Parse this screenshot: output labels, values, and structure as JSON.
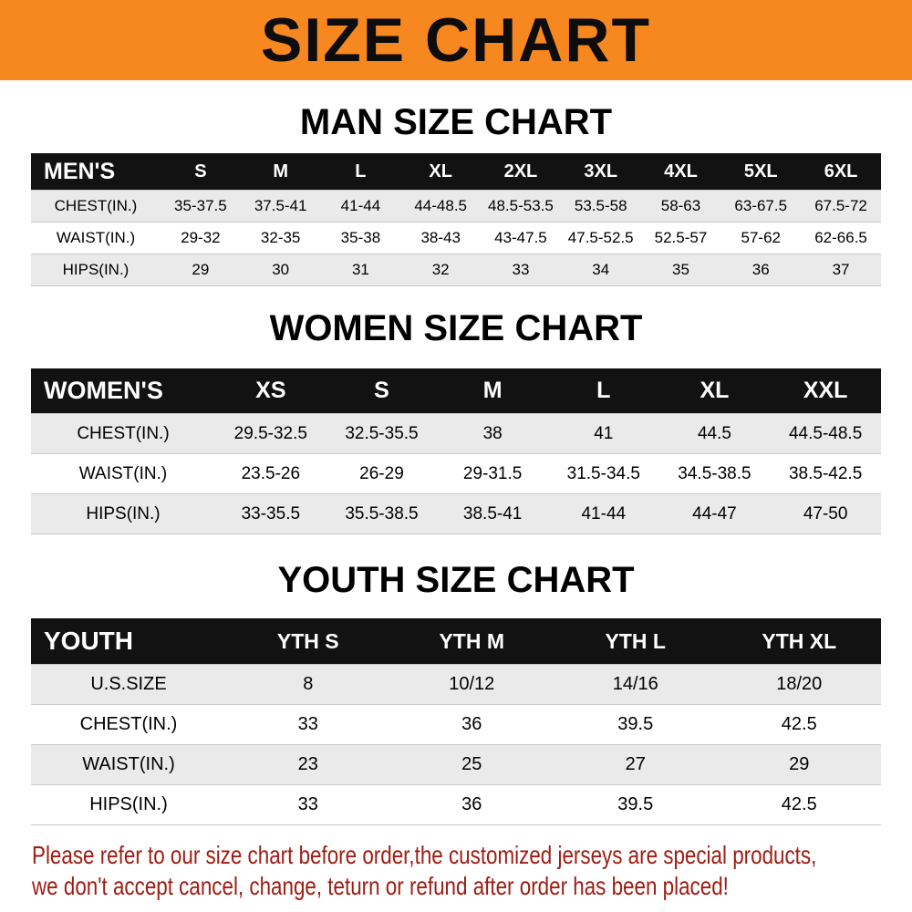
{
  "banner": {
    "title": "SIZE CHART"
  },
  "colors": {
    "banner_background": "#f6881f",
    "header_bar": "#121212",
    "row_stripe": "#eaeaea",
    "notice_text": "#9e1c12"
  },
  "sections": [
    {
      "heading": "MAN SIZE CHART",
      "table": {
        "header_label": "MEN'S",
        "columns": [
          "S",
          "M",
          "L",
          "XL",
          "2XL",
          "3XL",
          "4XL",
          "5XL",
          "6XL"
        ],
        "rows": [
          {
            "label": "CHEST(IN.)",
            "values": [
              "35-37.5",
              "37.5-41",
              "41-44",
              "44-48.5",
              "48.5-53.5",
              "53.5-58",
              "58-63",
              "63-67.5",
              "67.5-72"
            ]
          },
          {
            "label": "WAIST(IN.)",
            "values": [
              "29-32",
              "32-35",
              "35-38",
              "38-43",
              "43-47.5",
              "47.5-52.5",
              "52.5-57",
              "57-62",
              "62-66.5"
            ]
          },
          {
            "label": "HIPS(IN.)",
            "values": [
              "29",
              "30",
              "31",
              "32",
              "33",
              "34",
              "35",
              "36",
              "37"
            ]
          }
        ]
      }
    },
    {
      "heading": "WOMEN SIZE CHART",
      "table": {
        "header_label": "WOMEN'S",
        "columns": [
          "XS",
          "S",
          "M",
          "L",
          "XL",
          "XXL"
        ],
        "rows": [
          {
            "label": "CHEST(IN.)",
            "values": [
              "29.5-32.5",
              "32.5-35.5",
              "38",
              "41",
              "44.5",
              "44.5-48.5"
            ]
          },
          {
            "label": "WAIST(IN.)",
            "values": [
              "23.5-26",
              "26-29",
              "29-31.5",
              "31.5-34.5",
              "34.5-38.5",
              "38.5-42.5"
            ]
          },
          {
            "label": "HIPS(IN.)",
            "values": [
              "33-35.5",
              "35.5-38.5",
              "38.5-41",
              "41-44",
              "44-47",
              "47-50"
            ]
          }
        ]
      }
    },
    {
      "heading": "YOUTH SIZE CHART",
      "table": {
        "header_label": "YOUTH",
        "columns": [
          "YTH S",
          "YTH M",
          "YTH L",
          "YTH XL"
        ],
        "rows": [
          {
            "label": "U.S.SIZE",
            "values": [
              "8",
              "10/12",
              "14/16",
              "18/20"
            ]
          },
          {
            "label": "CHEST(IN.)",
            "values": [
              "33",
              "36",
              "39.5",
              "42.5"
            ]
          },
          {
            "label": "WAIST(IN.)",
            "values": [
              "23",
              "25",
              "27",
              "29"
            ]
          },
          {
            "label": "HIPS(IN.)",
            "values": [
              "33",
              "36",
              "39.5",
              "42.5"
            ]
          }
        ]
      }
    }
  ],
  "footer": {
    "line1": "Please refer to our size chart before order,the customized jerseys are special products,",
    "line2": "we don't accept cancel, change, teturn or refund after order has been placed!"
  },
  "chart_data": [
    {
      "type": "table",
      "title": "MAN SIZE CHART",
      "columns": [
        "MEN'S",
        "S",
        "M",
        "L",
        "XL",
        "2XL",
        "3XL",
        "4XL",
        "5XL",
        "6XL"
      ],
      "rows": [
        [
          "CHEST(IN.)",
          "35-37.5",
          "37.5-41",
          "41-44",
          "44-48.5",
          "48.5-53.5",
          "53.5-58",
          "58-63",
          "63-67.5",
          "67.5-72"
        ],
        [
          "WAIST(IN.)",
          "29-32",
          "32-35",
          "35-38",
          "38-43",
          "43-47.5",
          "47.5-52.5",
          "52.5-57",
          "57-62",
          "62-66.5"
        ],
        [
          "HIPS(IN.)",
          "29",
          "30",
          "31",
          "32",
          "33",
          "34",
          "35",
          "36",
          "37"
        ]
      ]
    },
    {
      "type": "table",
      "title": "WOMEN SIZE CHART",
      "columns": [
        "WOMEN'S",
        "XS",
        "S",
        "M",
        "L",
        "XL",
        "XXL"
      ],
      "rows": [
        [
          "CHEST(IN.)",
          "29.5-32.5",
          "32.5-35.5",
          "38",
          "41",
          "44.5",
          "44.5-48.5"
        ],
        [
          "WAIST(IN.)",
          "23.5-26",
          "26-29",
          "29-31.5",
          "31.5-34.5",
          "34.5-38.5",
          "38.5-42.5"
        ],
        [
          "HIPS(IN.)",
          "33-35.5",
          "35.5-38.5",
          "38.5-41",
          "41-44",
          "44-47",
          "47-50"
        ]
      ]
    },
    {
      "type": "table",
      "title": "YOUTH SIZE CHART",
      "columns": [
        "YOUTH",
        "YTH S",
        "YTH M",
        "YTH L",
        "YTH XL"
      ],
      "rows": [
        [
          "U.S.SIZE",
          "8",
          "10/12",
          "14/16",
          "18/20"
        ],
        [
          "CHEST(IN.)",
          "33",
          "36",
          "39.5",
          "42.5"
        ],
        [
          "WAIST(IN.)",
          "23",
          "25",
          "27",
          "29"
        ],
        [
          "HIPS(IN.)",
          "33",
          "36",
          "39.5",
          "42.5"
        ]
      ]
    }
  ]
}
